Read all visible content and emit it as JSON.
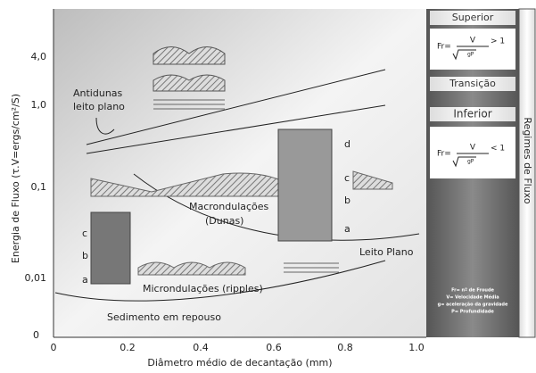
{
  "axes": {
    "y_label": "Energia de Fluxo (τ.V=ergs/cm²/S)",
    "x_label": "Diâmetro médio de decantação (mm)",
    "x_ticks": [
      "0",
      "0.2",
      "0.4",
      "0.6",
      "0.8",
      "1.0"
    ],
    "y_ticks": [
      "4,0",
      "1,0",
      "0,1",
      "0,01",
      "0"
    ]
  },
  "regions": {
    "antidunas": "Antidunas",
    "leito_plano_upper": "leito plano",
    "macro": "Macrondulações",
    "dunas": "(Dunas)",
    "leito_plano": "Leito Plano",
    "micro": "Microndulações (ripples)",
    "repouso": "Sedimento em repouso"
  },
  "figure_labels": {
    "dunes": [
      "d",
      "c",
      "b",
      "a"
    ],
    "ripples": [
      "c",
      "b",
      "a"
    ]
  },
  "regimes": {
    "title": "Regimes de Fluxo",
    "superior": "Superior",
    "transicao": "Transição",
    "inferior": "Inferior",
    "fr": "Fr=",
    "v": "V",
    "gt": "> 1",
    "lt": "< 1",
    "gp": "gP",
    "legend": [
      "Fr= nº de Froude",
      "V= Velocidade Média",
      "g= aceleração da gravidade",
      "P= Profundidade"
    ]
  }
}
